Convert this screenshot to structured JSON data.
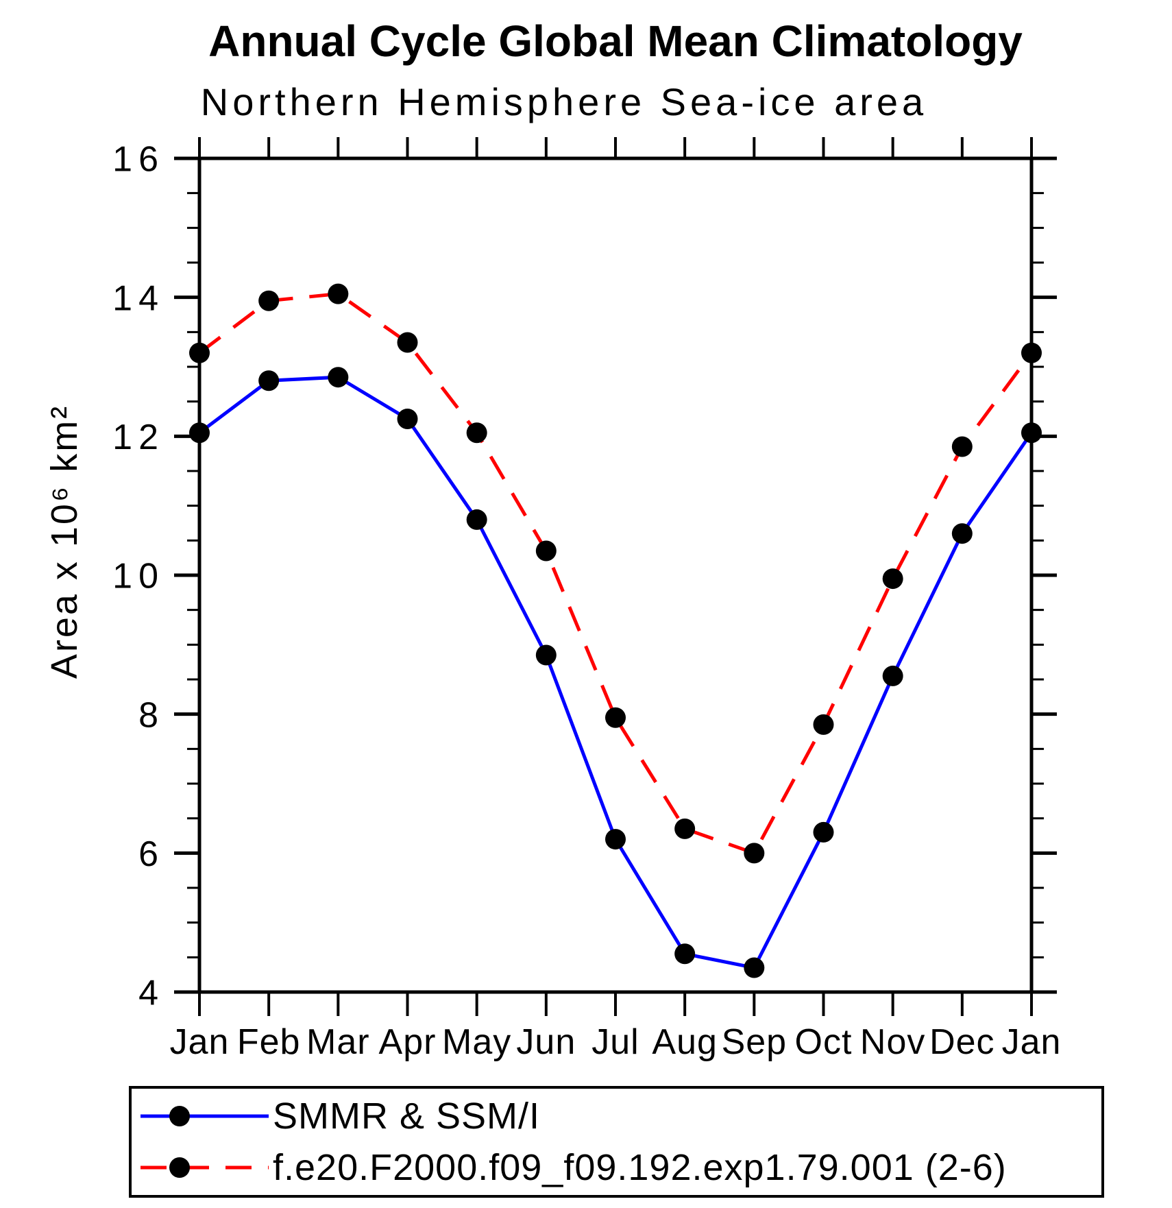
{
  "chart_data": {
    "type": "line",
    "title": "Annual Cycle Global Mean Climatology",
    "subtitle": "Northern Hemisphere Sea-ice area",
    "ylabel": "Area x 10⁶ km²",
    "xlabel": "",
    "x_categories": [
      "Jan",
      "Feb",
      "Mar",
      "Apr",
      "May",
      "Jun",
      "Jul",
      "Aug",
      "Sep",
      "Oct",
      "Nov",
      "Dec",
      "Jan"
    ],
    "ylim": [
      4,
      16
    ],
    "ytick_major": [
      4,
      6,
      8,
      10,
      12,
      14,
      16
    ],
    "ytick_minor_step": 0.5,
    "grid": false,
    "axis_color": "#000000",
    "marker": "filled-circle",
    "marker_color": "#000000",
    "legend_position": "bottom",
    "series": [
      {
        "name": "SMMR & SSM/I",
        "color": "#0000ff",
        "line_style": "solid",
        "values": [
          12.05,
          12.8,
          12.85,
          12.25,
          10.8,
          8.85,
          6.2,
          4.55,
          4.35,
          6.3,
          8.55,
          10.6,
          12.05
        ]
      },
      {
        "name": "f.e20.F2000.f09_f09.192.exp1.79.001 (2-6)",
        "color": "#ff0000",
        "line_style": "dashed",
        "values": [
          13.2,
          13.95,
          14.05,
          13.35,
          12.05,
          10.35,
          7.95,
          6.35,
          6.0,
          7.85,
          9.95,
          11.85,
          13.2
        ]
      }
    ]
  }
}
